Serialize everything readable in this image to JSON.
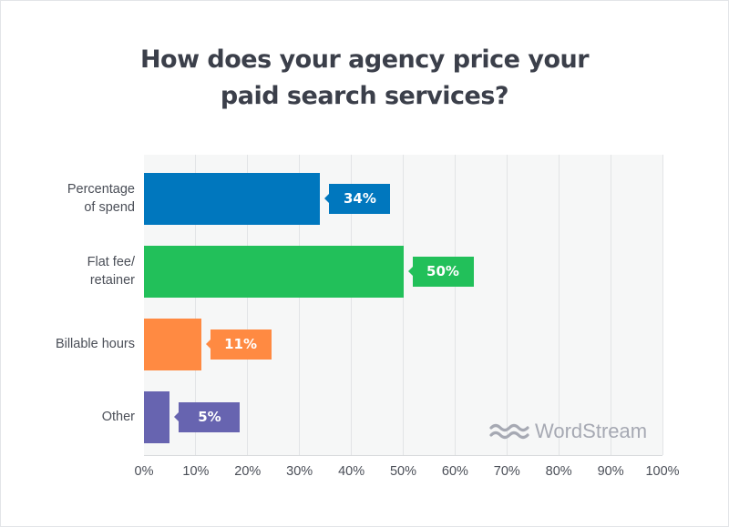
{
  "title": {
    "line1": "How does your agency price your",
    "line2": "paid search services?"
  },
  "branding": {
    "logo_text": "WordStream",
    "logo_icon": "wave-icon"
  },
  "axis": {
    "ticks": [
      "0%",
      "10%",
      "20%",
      "30%",
      "40%",
      "50%",
      "60%",
      "70%",
      "80%",
      "90%",
      "100%"
    ]
  },
  "categories": [
    {
      "label_line1": "Percentage",
      "label_line2": "of spend",
      "value": 34,
      "value_label": "34%",
      "color": "#0077be"
    },
    {
      "label_line1": "Flat fee/",
      "label_line2": "retainer",
      "value": 50,
      "value_label": "50%",
      "color": "#22c05a"
    },
    {
      "label_line1": "Billable hours",
      "label_line2": "",
      "value": 11,
      "value_label": "11%",
      "color": "#ff8a42"
    },
    {
      "label_line1": "Other",
      "label_line2": "",
      "value": 5,
      "value_label": "5%",
      "color": "#6764b0"
    }
  ],
  "chart_data": {
    "type": "bar",
    "orientation": "horizontal",
    "title": "How does your agency price your paid search services?",
    "categories": [
      "Percentage of spend",
      "Flat fee/retainer",
      "Billable hours",
      "Other"
    ],
    "values": [
      34,
      50,
      11,
      5
    ],
    "value_labels": [
      "34%",
      "50%",
      "11%",
      "5%"
    ],
    "colors": [
      "#0077be",
      "#22c05a",
      "#ff8a42",
      "#6764b0"
    ],
    "xlabel": "",
    "ylabel": "",
    "xlim": [
      0,
      100
    ],
    "xticks": [
      "0%",
      "10%",
      "20%",
      "30%",
      "40%",
      "50%",
      "60%",
      "70%",
      "80%",
      "90%",
      "100%"
    ],
    "grid": "vertical",
    "legend": "none",
    "annotations": [
      "WordStream logo watermark (bottom right)"
    ]
  }
}
